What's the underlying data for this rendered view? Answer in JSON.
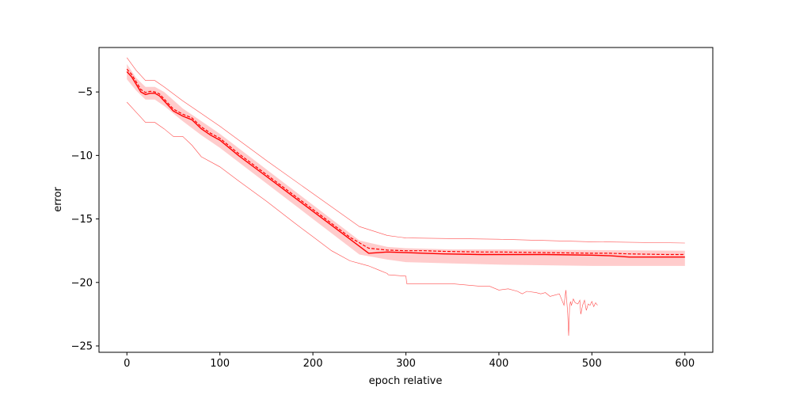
{
  "chart_data": {
    "type": "line",
    "title": "",
    "xlabel": "epoch relative",
    "ylabel": "error",
    "xlim": [
      -30,
      630
    ],
    "ylim": [
      -25.5,
      -1.5
    ],
    "xticks": [
      0,
      100,
      200,
      300,
      400,
      500,
      600
    ],
    "yticks": [
      -5,
      -10,
      -15,
      -20,
      -25
    ],
    "xtick_labels": [
      "0",
      "100",
      "200",
      "300",
      "400",
      "500",
      "600"
    ],
    "ytick_labels": [
      "−5",
      "−10",
      "−15",
      "−20",
      "−25"
    ],
    "grid": false,
    "legend": "none",
    "color": "#ff0000",
    "band_color": "#ffcccc",
    "series": [
      {
        "role": "median",
        "style": "solid",
        "x": [
          0,
          5,
          10,
          15,
          20,
          25,
          30,
          35,
          40,
          50,
          60,
          70,
          80,
          90,
          100,
          120,
          140,
          160,
          180,
          200,
          220,
          240,
          260,
          280,
          300,
          320,
          340,
          380,
          400,
          450,
          500,
          520,
          540,
          580,
          600
        ],
        "y": [
          -3.4,
          -3.8,
          -4.4,
          -5.0,
          -5.2,
          -5.1,
          -5.1,
          -5.3,
          -5.7,
          -6.5,
          -6.9,
          -7.2,
          -7.9,
          -8.4,
          -8.8,
          -10.0,
          -11.1,
          -12.2,
          -13.3,
          -14.4,
          -15.5,
          -16.6,
          -17.7,
          -17.6,
          -17.65,
          -17.7,
          -17.75,
          -17.8,
          -17.8,
          -17.8,
          -17.85,
          -17.9,
          -18.0,
          -18.0,
          -18.0
        ]
      },
      {
        "role": "mean",
        "style": "dashed",
        "x": [
          0,
          5,
          10,
          15,
          20,
          25,
          30,
          35,
          40,
          50,
          60,
          70,
          80,
          90,
          100,
          120,
          140,
          160,
          180,
          200,
          220,
          240,
          260,
          280,
          300,
          320,
          340,
          380,
          400,
          450,
          500,
          520,
          540,
          580,
          600
        ],
        "y": [
          -3.2,
          -3.6,
          -4.2,
          -4.8,
          -5.05,
          -4.95,
          -5.0,
          -5.15,
          -5.55,
          -6.35,
          -6.75,
          -7.05,
          -7.75,
          -8.25,
          -8.65,
          -9.85,
          -10.95,
          -12.05,
          -13.15,
          -14.25,
          -15.35,
          -16.45,
          -17.3,
          -17.45,
          -17.5,
          -17.5,
          -17.55,
          -17.6,
          -17.6,
          -17.65,
          -17.7,
          -17.7,
          -17.75,
          -17.8,
          -17.8
        ]
      },
      {
        "role": "band_upper",
        "x": [
          0,
          10,
          20,
          30,
          40,
          60,
          80,
          100,
          150,
          200,
          250,
          280,
          300,
          350,
          400,
          500,
          600
        ],
        "y": [
          -2.8,
          -3.9,
          -4.6,
          -4.6,
          -5.0,
          -6.3,
          -7.3,
          -8.3,
          -11.1,
          -13.9,
          -16.7,
          -17.2,
          -17.3,
          -17.4,
          -17.4,
          -17.45,
          -17.5
        ]
      },
      {
        "role": "band_lower",
        "x": [
          0,
          10,
          20,
          30,
          40,
          60,
          80,
          100,
          150,
          200,
          250,
          280,
          300,
          350,
          400,
          500,
          600
        ],
        "y": [
          -4.0,
          -4.9,
          -5.6,
          -5.6,
          -6.1,
          -7.3,
          -8.4,
          -9.4,
          -12.2,
          -15.0,
          -17.8,
          -18.2,
          -18.4,
          -18.5,
          -18.6,
          -18.7,
          -18.7
        ]
      },
      {
        "role": "max",
        "x": [
          0,
          10,
          20,
          30,
          40,
          60,
          80,
          100,
          150,
          200,
          250,
          280,
          300,
          400,
          500,
          600
        ],
        "y": [
          -2.3,
          -3.3,
          -4.1,
          -4.1,
          -4.6,
          -5.7,
          -6.7,
          -7.7,
          -10.4,
          -13.0,
          -15.6,
          -16.3,
          -16.5,
          -16.6,
          -16.8,
          -16.9
        ]
      },
      {
        "role": "min",
        "x": [
          0,
          10,
          20,
          30,
          40,
          50,
          60,
          70,
          80,
          100,
          120,
          150,
          180,
          200,
          220,
          240,
          250,
          260,
          270,
          280,
          281,
          300,
          301,
          350,
          380,
          390,
          400,
          410,
          420,
          425,
          430,
          440,
          445,
          450,
          455,
          460,
          465,
          470,
          472,
          474,
          475,
          476,
          477,
          478,
          480,
          482,
          485,
          487,
          488,
          490,
          492,
          494,
          496,
          498,
          500,
          502,
          504,
          506
        ],
        "y": [
          -5.8,
          -6.6,
          -7.4,
          -7.4,
          -7.9,
          -8.5,
          -8.5,
          -9.2,
          -10.1,
          -10.9,
          -12.0,
          -13.6,
          -15.3,
          -16.4,
          -17.5,
          -18.3,
          -18.5,
          -18.7,
          -19.0,
          -19.3,
          -19.4,
          -19.5,
          -20.1,
          -20.1,
          -20.3,
          -20.3,
          -20.6,
          -20.5,
          -20.7,
          -20.9,
          -20.7,
          -20.8,
          -20.9,
          -20.8,
          -21.1,
          -21.0,
          -20.9,
          -21.8,
          -20.6,
          -22.4,
          -24.2,
          -21.9,
          -21.5,
          -21.8,
          -21.3,
          -21.6,
          -21.7,
          -21.4,
          -22.5,
          -21.8,
          -21.4,
          -22.2,
          -21.7,
          -21.8,
          -21.5,
          -21.9,
          -21.6,
          -21.8
        ]
      }
    ]
  }
}
